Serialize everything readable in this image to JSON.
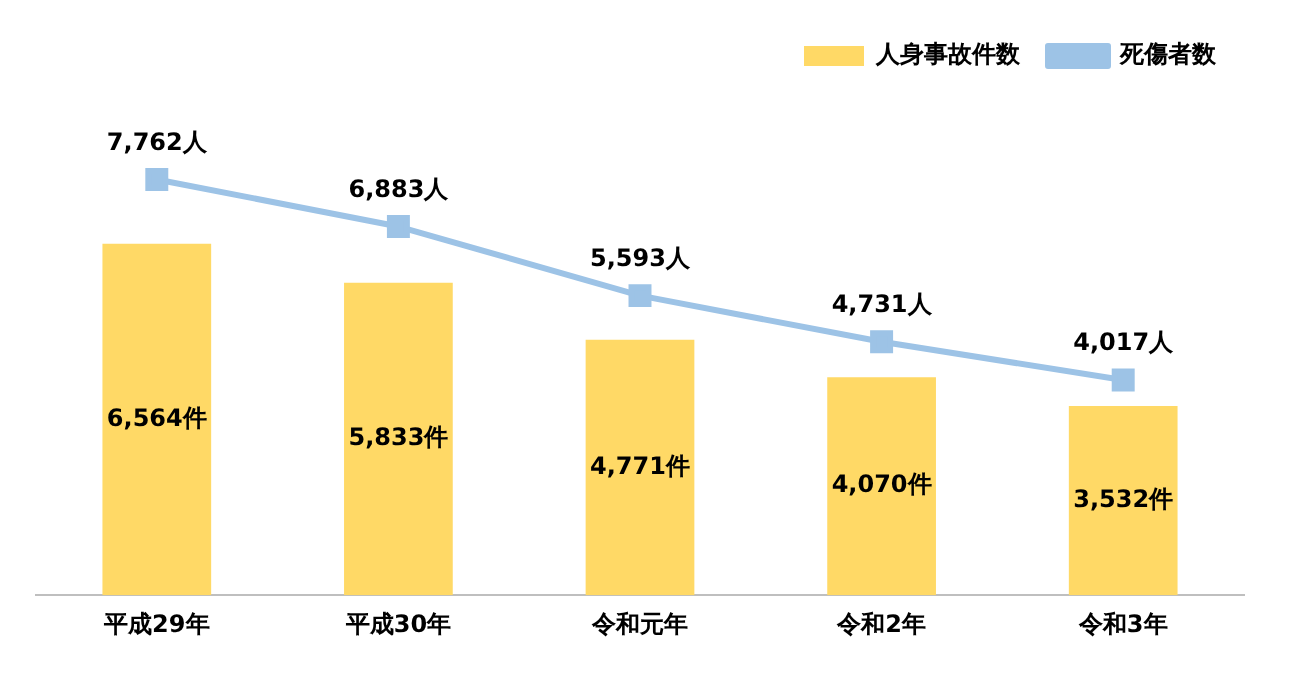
{
  "chart_data": {
    "type": "bar",
    "categories": [
      "平成29年",
      "平成30年",
      "令和元年",
      "令和2年",
      "令和3年"
    ],
    "series": [
      {
        "name": "人身事故件数",
        "color": "#ffd966",
        "values": [
          6564,
          5833,
          4771,
          4070,
          3532
        ],
        "value_labels": [
          "6,564件",
          "5,833件",
          "4,771件",
          "4,070件",
          "3,532件"
        ]
      },
      {
        "name": "死傷者数",
        "type": "line",
        "color": "#9dc3e6",
        "marker": "square",
        "values": [
          7762,
          6883,
          5593,
          4731,
          4017
        ],
        "value_labels": [
          "7,762人",
          "6,883人",
          "5,593人",
          "4,731人",
          "4,017人"
        ]
      }
    ],
    "legend": "top right",
    "grid": false,
    "tick_labels": "x"
  }
}
